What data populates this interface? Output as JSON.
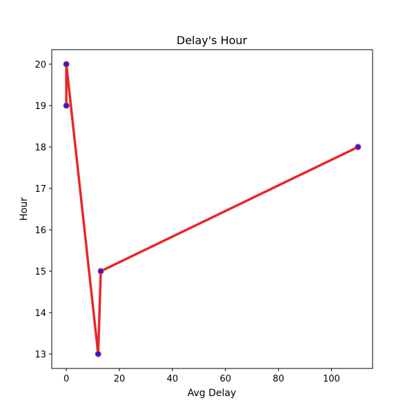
{
  "chart_data": {
    "type": "line",
    "title": "Delay's Hour",
    "xlabel": "Avg Delay",
    "ylabel": "Hour",
    "xlim": [
      -5.5,
      115.5
    ],
    "ylim": [
      12.65,
      20.35
    ],
    "x_ticks": [
      0,
      20,
      40,
      60,
      80,
      100
    ],
    "y_ticks": [
      13,
      14,
      15,
      16,
      17,
      18,
      19,
      20
    ],
    "grid": false,
    "series": [
      {
        "x": [
          0,
          0,
          12,
          13,
          110
        ],
        "y": [
          19,
          20,
          13,
          15,
          18
        ],
        "line_color": "#e8262a",
        "marker_face_color": "#1f1fe0",
        "marker_edge_color": "#d04040"
      }
    ]
  }
}
